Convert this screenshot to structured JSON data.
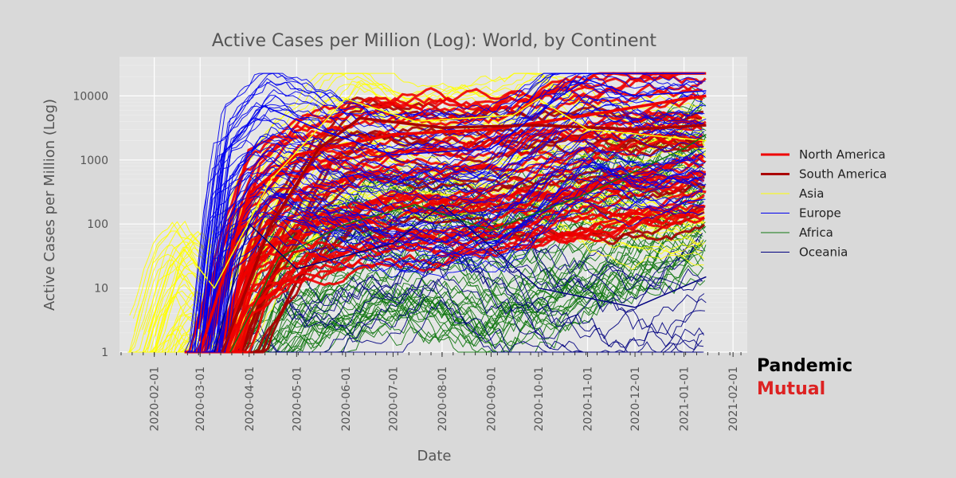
{
  "chart_data": {
    "type": "line",
    "title": "Active Cases per Million (Log): World, by Continent",
    "xlabel": "Date",
    "ylabel": "Active Cases per Million (Log)",
    "yscale": "log",
    "ylim": [
      1,
      40000
    ],
    "xlim": [
      "2020-01-10",
      "2021-02-10"
    ],
    "x_ticks": [
      "2020-02-01",
      "2020-03-01",
      "2020-04-01",
      "2020-05-01",
      "2020-06-01",
      "2020-07-01",
      "2020-08-01",
      "2020-09-01",
      "2020-10-01",
      "2020-11-01",
      "2020-12-01",
      "2021-01-01",
      "2021-02-01"
    ],
    "y_ticks": [
      {
        "value": 1,
        "label": "1"
      },
      {
        "value": 10,
        "label": "10"
      },
      {
        "value": 100,
        "label": "100"
      },
      {
        "value": 1000,
        "label": "1000"
      },
      {
        "value": 10000,
        "label": "10000"
      }
    ],
    "legend_position": "right",
    "series": [
      {
        "name": "North America",
        "color": "#ee0000",
        "width": 3,
        "representative_points": [
          [
            "2020-03-01",
            1
          ],
          [
            "2020-04-01",
            300
          ],
          [
            "2020-05-01",
            1200
          ],
          [
            "2020-07-01",
            2500
          ],
          [
            "2020-09-01",
            3000
          ],
          [
            "2020-11-01",
            5000
          ],
          [
            "2021-01-01",
            9000
          ],
          [
            "2021-01-15",
            10000
          ]
        ]
      },
      {
        "name": "South America",
        "color": "#aa0000",
        "width": 3,
        "representative_points": [
          [
            "2020-03-15",
            1
          ],
          [
            "2020-04-15",
            100
          ],
          [
            "2020-05-15",
            1500
          ],
          [
            "2020-06-10",
            4500
          ],
          [
            "2020-08-01",
            3200
          ],
          [
            "2020-10-01",
            3500
          ],
          [
            "2020-12-01",
            3000
          ],
          [
            "2021-01-15",
            3500
          ]
        ]
      },
      {
        "name": "Asia",
        "color": "#ffff00",
        "width": 1,
        "representative_points": [
          [
            "2020-01-25",
            1
          ],
          [
            "2020-02-10",
            20
          ],
          [
            "2020-02-20",
            40
          ],
          [
            "2020-03-10",
            10
          ],
          [
            "2020-04-15",
            500
          ],
          [
            "2020-06-01",
            9000
          ],
          [
            "2020-07-15",
            4000
          ],
          [
            "2020-09-15",
            5000
          ],
          [
            "2020-10-01",
            9000
          ],
          [
            "2020-11-01",
            3000
          ],
          [
            "2021-01-15",
            2000
          ]
        ]
      },
      {
        "name": "Europe",
        "color": "#0000ee",
        "width": 1,
        "representative_points": [
          [
            "2020-03-01",
            1
          ],
          [
            "2020-03-15",
            1200
          ],
          [
            "2020-04-10",
            7000
          ],
          [
            "2020-05-15",
            3000
          ],
          [
            "2020-07-01",
            1200
          ],
          [
            "2020-09-01",
            1500
          ],
          [
            "2020-10-15",
            10000
          ],
          [
            "2020-11-01",
            18000
          ],
          [
            "2020-12-01",
            10000
          ],
          [
            "2021-01-15",
            12000
          ]
        ]
      },
      {
        "name": "Africa",
        "color": "#117711",
        "width": 1,
        "representative_points": [
          [
            "2020-03-20",
            1
          ],
          [
            "2020-04-20",
            30
          ],
          [
            "2020-06-01",
            100
          ],
          [
            "2020-07-15",
            200
          ],
          [
            "2020-09-01",
            80
          ],
          [
            "2020-11-01",
            300
          ],
          [
            "2021-01-01",
            1500
          ],
          [
            "2021-01-15",
            2500
          ]
        ]
      },
      {
        "name": "Oceania",
        "color": "#000080",
        "width": 1,
        "representative_points": [
          [
            "2020-03-10",
            1
          ],
          [
            "2020-04-01",
            100
          ],
          [
            "2020-05-01",
            20
          ],
          [
            "2020-07-01",
            50
          ],
          [
            "2020-08-01",
            200
          ],
          [
            "2020-10-01",
            10
          ],
          [
            "2020-12-01",
            5
          ],
          [
            "2021-01-15",
            15
          ]
        ]
      }
    ]
  },
  "watermark": {
    "line1": "Pandemic",
    "line2": "Mutual",
    "line1_color": "#000000",
    "line2_color": "#dd2222"
  }
}
